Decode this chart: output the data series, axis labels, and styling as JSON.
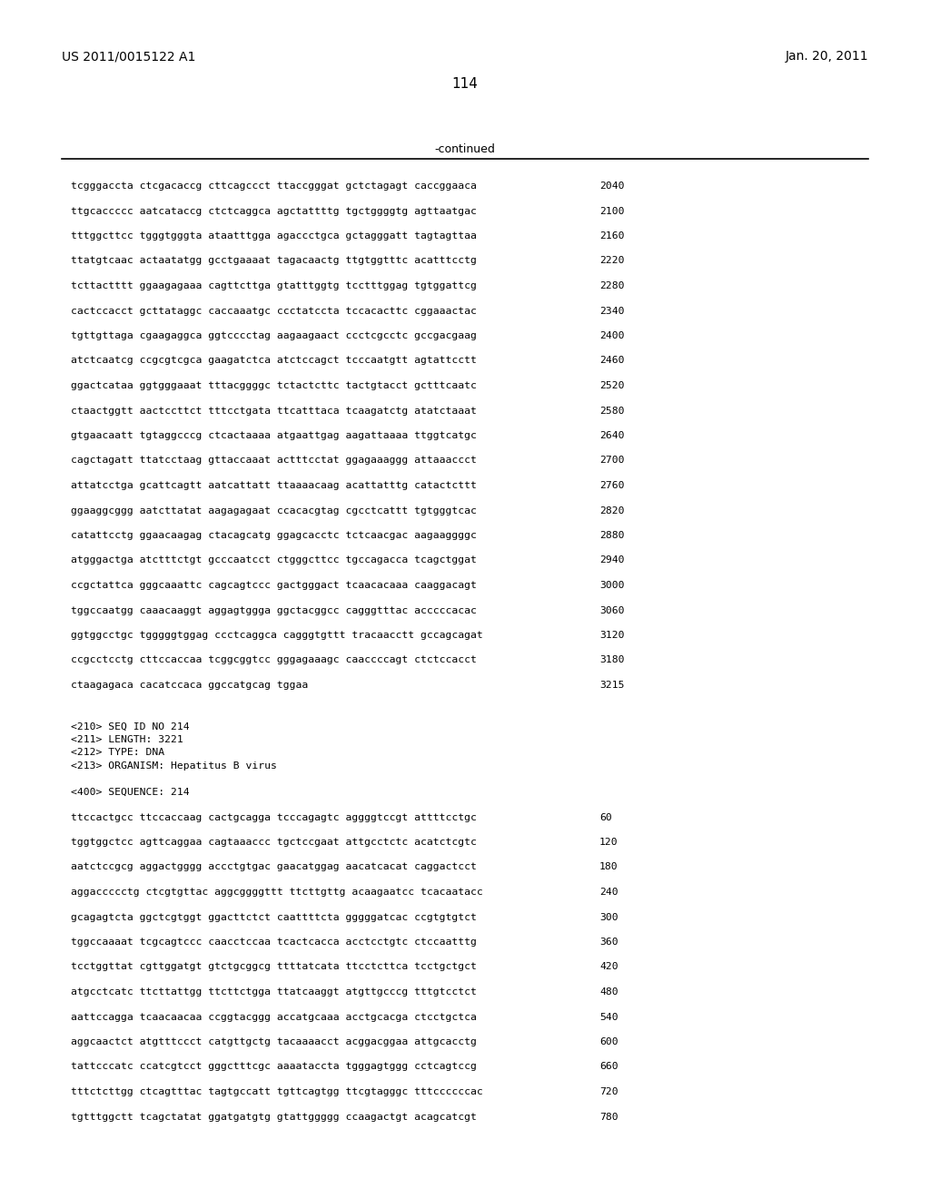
{
  "header_left": "US 2011/0015122 A1",
  "header_right": "Jan. 20, 2011",
  "page_number": "114",
  "continued_label": "-continued",
  "background_color": "#ffffff",
  "text_color": "#000000",
  "sequence_lines_top": [
    {
      "seq": "tcgggaccta ctcgacaccg cttcagccct ttaccgggat gctctagagt caccggaaca",
      "num": "2040"
    },
    {
      "seq": "ttgcaccccc aatcataccg ctctcaggca agctattttg tgctggggtg agttaatgac",
      "num": "2100"
    },
    {
      "seq": "tttggcttcc tgggtgggta ataatttgga agaccctgca gctagggatt tagtagttaa",
      "num": "2160"
    },
    {
      "seq": "ttatgtcaac actaatatgg gcctgaaaat tagacaactg ttgtggtttc acatttcctg",
      "num": "2220"
    },
    {
      "seq": "tcttactttt ggaagagaaa cagttcttga gtatttggtg tcctttggag tgtggattcg",
      "num": "2280"
    },
    {
      "seq": "cactccacct gcttataggc caccaaatgc ccctatccta tccacacttc cggaaactac",
      "num": "2340"
    },
    {
      "seq": "tgttgttaga cgaagaggca ggtcccctag aagaagaact ccctcgcctc gccgacgaag",
      "num": "2400"
    },
    {
      "seq": "atctcaatcg ccgcgtcgca gaagatctca atctccagct tcccaatgtt agtattcctt",
      "num": "2460"
    },
    {
      "seq": "ggactcataa ggtgggaaat tttacggggc tctactcttc tactgtacct gctttcaatc",
      "num": "2520"
    },
    {
      "seq": "ctaactggtt aactccttct tttcctgata ttcatttaca tcaagatctg atatctaaat",
      "num": "2580"
    },
    {
      "seq": "gtgaacaatt tgtaggcccg ctcactaaaa atgaattgag aagattaaaa ttggtcatgc",
      "num": "2640"
    },
    {
      "seq": "cagctagatt ttatcctaag gttaccaaat actttcctat ggagaaaggg attaaaccct",
      "num": "2700"
    },
    {
      "seq": "attatcctga gcattcagtt aatcattatt ttaaaacaag acattatttg catactcttt",
      "num": "2760"
    },
    {
      "seq": "ggaaggcggg aatcttatat aagagagaat ccacacgtag cgcctcattt tgtgggtcac",
      "num": "2820"
    },
    {
      "seq": "catattcctg ggaacaagag ctacagcatg ggagcacctc tctcaacgac aagaaggggc",
      "num": "2880"
    },
    {
      "seq": "atgggactga atctttctgt gcccaatcct ctgggcttcc tgccagacca tcagctggat",
      "num": "2940"
    },
    {
      "seq": "ccgctattca gggcaaattc cagcagtccc gactgggact tcaacacaaa caaggacagt",
      "num": "3000"
    },
    {
      "seq": "tggccaatgg caaacaaggt aggagtggga ggctacggcc cagggtttac acccccacac",
      "num": "3060"
    },
    {
      "seq": "ggtggcctgc tgggggtggag ccctcaggca cagggtgttt tracaacctt gccagcagat",
      "num": "3120"
    },
    {
      "seq": "ccgcctcctg cttccaccaa tcggcggtcc gggagaaagc caaccccagt ctctccacct",
      "num": "3180"
    },
    {
      "seq": "ctaagagaca cacatccaca ggccatgcag tggaa",
      "num": "3215"
    }
  ],
  "metadata_lines": [
    "<210> SEQ ID NO 214",
    "<211> LENGTH: 3221",
    "<212> TYPE: DNA",
    "<213> ORGANISM: Hepatitus B virus"
  ],
  "sequence_label": "<400> SEQUENCE: 214",
  "sequence_lines_bottom": [
    {
      "seq": "ttccactgcc ttccaccaag cactgcagga tcccagagtc aggggtccgt attttcctgc",
      "num": "60"
    },
    {
      "seq": "tggtggctcc agttcaggaa cagtaaaccc tgctccgaat attgcctctc acatctcgtc",
      "num": "120"
    },
    {
      "seq": "aatctccgcg aggactgggg accctgtgac gaacatggag aacatcacat caggactcct",
      "num": "180"
    },
    {
      "seq": "aggaccccctg ctcgtgttac aggcggggttt ttcttgttg acaagaatcc tcacaatacc",
      "num": "240"
    },
    {
      "seq": "gcagagtcta ggctcgtggt ggacttctct caattttcta gggggatcac ccgtgtgtct",
      "num": "300"
    },
    {
      "seq": "tggccaaaat tcgcagtccc caacctccaa tcactcacca acctcctgtc ctccaatttg",
      "num": "360"
    },
    {
      "seq": "tcctggttat cgttggatgt gtctgcggcg ttttatcata ttcctcttca tcctgctgct",
      "num": "420"
    },
    {
      "seq": "atgcctcatc ttcttattgg ttcttctgga ttatcaaggt atgttgcccg tttgtcctct",
      "num": "480"
    },
    {
      "seq": "aattccagga tcaacaacaa ccggtacggg accatgcaaa acctgcacga ctcctgctca",
      "num": "540"
    },
    {
      "seq": "aggcaactct atgtttccct catgttgctg tacaaaacct acggacggaa attgcacctg",
      "num": "600"
    },
    {
      "seq": "tattcccatc ccatcgtcct gggctttcgc aaaataccta tgggagtggg cctcagtccg",
      "num": "660"
    },
    {
      "seq": "tttctcttgg ctcagtttac tagtgccatt tgttcagtgg ttcgtagggc tttccccccac",
      "num": "720"
    },
    {
      "seq": "tgtttggctt tcagctatat ggatgatgtg gtattggggg ccaagactgt acagcatcgt",
      "num": "780"
    }
  ]
}
